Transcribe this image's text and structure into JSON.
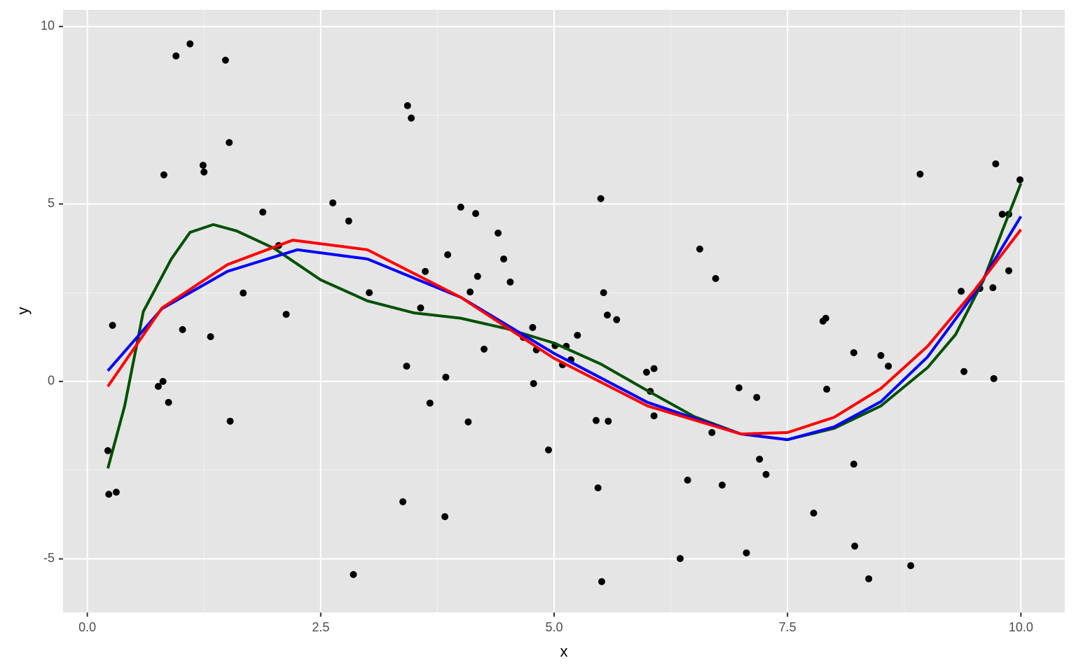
{
  "chart_data": {
    "type": "scatter",
    "x_label": "x",
    "y_label": "y",
    "color": "#000000",
    "x": [
      0.22,
      0.23,
      0.27,
      0.31,
      0.76,
      0.81,
      0.82,
      0.87,
      0.95,
      1.02,
      1.1,
      1.24,
      1.25,
      1.32,
      1.48,
      1.52,
      1.53,
      1.67,
      1.88,
      2.05,
      2.13,
      2.63,
      2.8,
      2.85,
      3.02,
      3.38,
      3.42,
      3.43,
      3.47,
      3.57,
      3.62,
      3.67,
      3.83,
      3.84,
      3.86,
      4.0,
      4.08,
      4.1,
      4.16,
      4.18,
      4.25,
      4.4,
      4.46,
      4.53,
      4.67,
      4.77,
      4.78,
      4.81,
      4.94,
      5.01,
      5.09,
      5.13,
      5.18,
      5.25,
      5.45,
      5.47,
      5.5,
      5.51,
      5.53,
      5.57,
      5.58,
      5.67,
      5.99,
      6.03,
      6.07,
      6.07,
      6.35,
      6.43,
      6.56,
      6.69,
      6.73,
      6.8,
      6.98,
      7.06,
      7.17,
      7.2,
      7.27,
      7.78,
      7.88,
      7.91,
      7.92,
      8.21,
      8.21,
      8.22,
      8.37,
      8.5,
      8.58,
      8.82,
      8.92,
      9.36,
      9.39,
      9.56,
      9.7,
      9.71,
      9.73,
      9.8,
      9.87,
      9.87,
      9.99
    ],
    "values": [
      -1.95,
      -3.18,
      1.58,
      -3.12,
      -0.14,
      0.0,
      5.82,
      -0.59,
      9.17,
      1.46,
      9.51,
      6.09,
      5.9,
      1.26,
      9.05,
      6.73,
      -1.12,
      2.49,
      4.77,
      3.83,
      1.89,
      5.03,
      4.52,
      -5.44,
      2.5,
      -3.39,
      0.43,
      7.77,
      7.42,
      2.07,
      3.1,
      -0.61,
      -3.81,
      0.12,
      3.57,
      4.91,
      -1.14,
      2.52,
      4.73,
      2.96,
      0.91,
      4.18,
      3.45,
      2.8,
      1.24,
      1.52,
      -0.06,
      0.89,
      -1.93,
      1.01,
      0.47,
      0.99,
      0.61,
      1.3,
      -1.1,
      -3.0,
      5.15,
      -5.64,
      2.5,
      1.87,
      -1.12,
      1.74,
      0.26,
      -0.28,
      0.36,
      -0.97,
      -4.99,
      -2.78,
      3.73,
      -1.44,
      2.9,
      -2.92,
      -0.18,
      -4.83,
      -0.45,
      -2.19,
      -2.62,
      -3.71,
      1.7,
      1.78,
      -0.22,
      0.81,
      -2.33,
      -4.64,
      -5.56,
      0.73,
      0.43,
      -5.19,
      5.84,
      2.54,
      0.28,
      2.62,
      2.64,
      0.08,
      6.13,
      4.71,
      4.71,
      3.12,
      5.68
    ],
    "lines": [
      {
        "color": "#005000",
        "x": [
          0.22,
          0.4,
          0.6,
          0.9,
          1.1,
          1.35,
          1.6,
          2.0,
          2.5,
          3.0,
          3.5,
          4.0,
          4.5,
          5.0,
          5.5,
          6.0,
          6.5,
          7.0,
          7.5,
          8.0,
          8.5,
          9.0,
          9.3,
          9.6,
          9.8,
          10.0
        ],
        "values": [
          -2.45,
          -0.69,
          1.97,
          3.45,
          4.2,
          4.42,
          4.24,
          3.75,
          2.86,
          2.27,
          1.93,
          1.78,
          1.48,
          1.08,
          0.49,
          -0.26,
          -0.99,
          -1.48,
          -1.64,
          -1.32,
          -0.69,
          0.39,
          1.32,
          2.86,
          4.24,
          5.58
        ]
      },
      {
        "color": "#0000ff",
        "x": [
          0.22,
          0.8,
          1.5,
          2.25,
          3.0,
          4.0,
          5.0,
          6.0,
          7.0,
          7.5,
          8.0,
          8.5,
          9.0,
          9.5,
          10.0
        ],
        "values": [
          0.3,
          2.05,
          3.1,
          3.71,
          3.45,
          2.37,
          0.79,
          -0.59,
          -1.48,
          -1.64,
          -1.28,
          -0.57,
          0.69,
          2.47,
          4.65
        ]
      },
      {
        "color": "#ff0000",
        "x": [
          0.22,
          0.8,
          1.5,
          2.2,
          3.0,
          4.0,
          5.0,
          6.0,
          7.0,
          7.5,
          8.0,
          8.5,
          9.0,
          9.5,
          10.0
        ],
        "values": [
          -0.14,
          2.07,
          3.29,
          3.98,
          3.71,
          2.37,
          0.65,
          -0.69,
          -1.48,
          -1.44,
          -1.01,
          -0.2,
          0.99,
          2.56,
          4.28
        ]
      }
    ],
    "xlim": [
      -0.26,
      10.47
    ],
    "ylim": [
      -6.51,
      10.47
    ],
    "xticks": [
      {
        "value": 0,
        "label": "0.0"
      },
      2.5,
      {
        "value": 5,
        "label": "5.0"
      },
      7.5,
      {
        "value": 10,
        "label": "10.0"
      }
    ],
    "yticks": [
      -5,
      0,
      5,
      10
    ],
    "grid": true
  }
}
